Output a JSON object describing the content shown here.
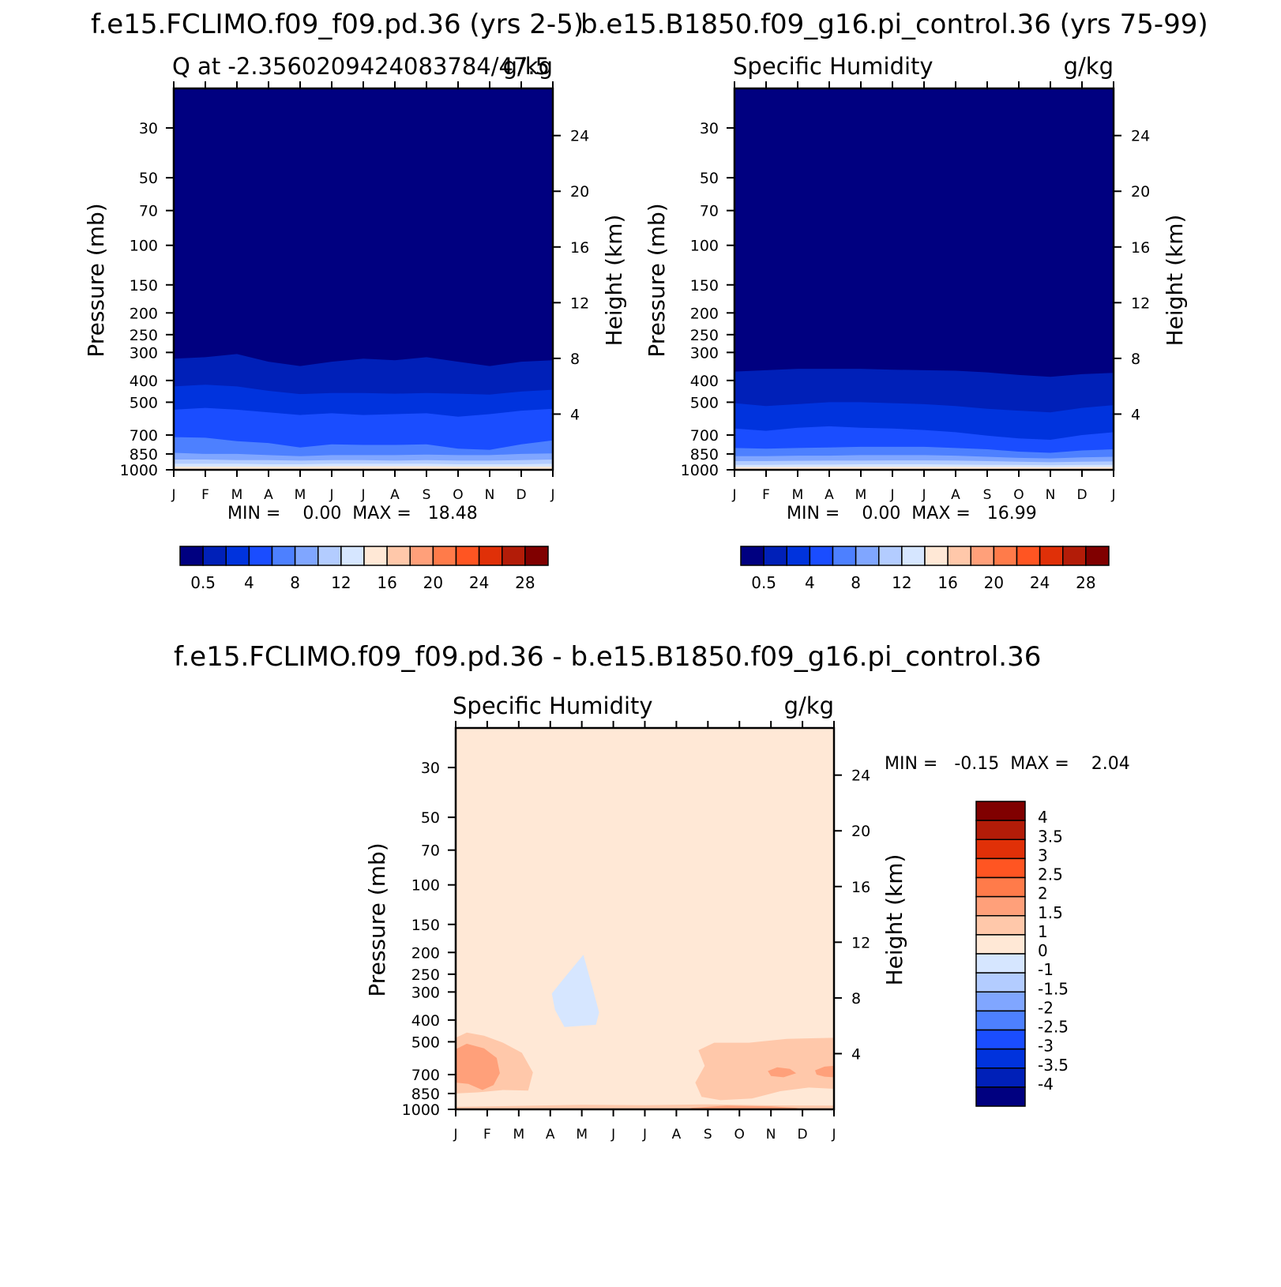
{
  "chart_data": [
    {
      "type": "heatmap",
      "title": "f.e15.FCLIMO.f09_f09.pd.36 (yrs 2-5)",
      "left_label": "Q at -2.3560209424083784/47.5",
      "right_label": "g/kg",
      "xlabel": "",
      "ylabel": "Pressure (mb)",
      "ylabel_right": "Height (km)",
      "x_ticks": [
        "J",
        "F",
        "M",
        "A",
        "M",
        "J",
        "J",
        "A",
        "S",
        "O",
        "N",
        "D",
        "J"
      ],
      "y_ticks": [
        "30",
        "50",
        "70",
        "100",
        "150",
        "200",
        "250",
        "300",
        "400",
        "500",
        "700",
        "850",
        "1000"
      ],
      "y_ticks_right": [
        "4",
        "8",
        "12",
        "16",
        "20",
        "24"
      ],
      "ylim": [
        1000,
        20
      ],
      "yscale": "log",
      "minmax_text": "MIN =    0.00  MAX =   18.48",
      "colorbar_labels": [
        "0.5",
        "4",
        "8",
        "12",
        "16",
        "20",
        "24",
        "28"
      ],
      "colors": [
        "#000080",
        "#0020b8",
        "#0033dd",
        "#1a4dff",
        "#4d80ff",
        "#80a6ff",
        "#b3ccff",
        "#d6e6ff",
        "#ffe8d6",
        "#ffc8aa",
        "#ffa07a",
        "#ff7b4a",
        "#ff5522",
        "#e03008",
        "#b31c08",
        "#800000"
      ],
      "contour_levels": [
        0.5,
        2,
        4,
        6,
        8,
        10,
        12,
        14,
        16,
        18,
        20,
        22,
        24,
        26,
        28
      ],
      "boundaries_mb": [
        [
          320,
          315,
          305,
          330,
          345,
          330,
          320,
          325,
          315,
          330,
          345,
          330,
          325
        ],
        [
          425,
          418,
          425,
          445,
          460,
          455,
          455,
          458,
          455,
          458,
          462,
          448,
          440
        ],
        [
          540,
          530,
          540,
          555,
          570,
          560,
          570,
          565,
          560,
          580,
          565,
          545,
          535
        ],
        [
          715,
          720,
          745,
          760,
          795,
          770,
          775,
          775,
          770,
          805,
          815,
          770,
          740
        ],
        [
          840,
          850,
          850,
          860,
          870,
          860,
          860,
          860,
          855,
          860,
          860,
          850,
          845
        ],
        [
          900,
          900,
          905,
          905,
          910,
          905,
          905,
          910,
          905,
          910,
          910,
          905,
          900
        ],
        [
          940,
          940,
          940,
          945,
          945,
          940,
          940,
          940,
          940,
          945,
          945,
          945,
          940
        ],
        [
          968,
          968,
          968,
          968,
          968,
          965,
          965,
          965,
          965,
          968,
          968,
          968,
          968
        ]
      ]
    },
    {
      "type": "heatmap",
      "title": "b.e15.B1850.f09_g16.pi_control.36 (yrs 75-99)",
      "left_label": "Specific Humidity",
      "right_label": "g/kg",
      "xlabel": "",
      "ylabel": "Pressure (mb)",
      "ylabel_right": "Height (km)",
      "x_ticks": [
        "J",
        "F",
        "M",
        "A",
        "M",
        "J",
        "J",
        "A",
        "S",
        "O",
        "N",
        "D",
        "J"
      ],
      "y_ticks": [
        "30",
        "50",
        "70",
        "100",
        "150",
        "200",
        "250",
        "300",
        "400",
        "500",
        "700",
        "850",
        "1000"
      ],
      "y_ticks_right": [
        "4",
        "8",
        "12",
        "16",
        "20",
        "24"
      ],
      "ylim": [
        1000,
        20
      ],
      "yscale": "log",
      "minmax_text": "MIN =    0.00  MAX =   16.99",
      "colorbar_labels": [
        "0.5",
        "4",
        "8",
        "12",
        "16",
        "20",
        "24",
        "28"
      ],
      "colors": [
        "#000080",
        "#0020b8",
        "#0033dd",
        "#1a4dff",
        "#4d80ff",
        "#80a6ff",
        "#b3ccff",
        "#d6e6ff",
        "#ffe8d6",
        "#ffc8aa",
        "#ffa07a",
        "#ff7b4a",
        "#ff5522",
        "#e03008",
        "#b31c08",
        "#800000"
      ],
      "contour_levels": [
        0.5,
        2,
        4,
        6,
        8,
        10,
        12,
        14,
        16,
        18,
        20,
        22,
        24,
        26,
        28
      ],
      "boundaries_mb": [
        [
          365,
          360,
          355,
          355,
          355,
          358,
          360,
          362,
          368,
          378,
          385,
          375,
          370
        ],
        [
          505,
          520,
          510,
          500,
          500,
          505,
          510,
          520,
          535,
          545,
          555,
          530,
          515
        ],
        [
          655,
          670,
          650,
          640,
          650,
          655,
          665,
          680,
          705,
          725,
          735,
          700,
          680
        ],
        [
          800,
          805,
          800,
          795,
          790,
          790,
          790,
          800,
          810,
          830,
          840,
          820,
          810
        ],
        [
          870,
          870,
          865,
          865,
          860,
          860,
          860,
          865,
          875,
          885,
          890,
          880,
          875
        ],
        [
          915,
          915,
          912,
          910,
          910,
          908,
          908,
          910,
          915,
          920,
          925,
          920,
          918
        ],
        [
          950,
          950,
          948,
          948,
          945,
          945,
          945,
          948,
          950,
          952,
          955,
          952,
          950
        ],
        [
          972,
          972,
          972,
          970,
          970,
          970,
          970,
          970,
          972,
          972,
          975,
          972,
          972
        ]
      ]
    },
    {
      "type": "heatmap",
      "title": "f.e15.FCLIMO.f09_f09.pd.36 - b.e15.B1850.f09_g16.pi_control.36",
      "left_label": "Specific Humidity",
      "right_label": "g/kg",
      "xlabel": "",
      "ylabel": "Pressure (mb)",
      "ylabel_right": "Height (km)",
      "x_ticks": [
        "J",
        "F",
        "M",
        "A",
        "M",
        "J",
        "J",
        "A",
        "S",
        "O",
        "N",
        "D",
        "J"
      ],
      "y_ticks": [
        "30",
        "50",
        "70",
        "100",
        "150",
        "200",
        "250",
        "300",
        "400",
        "500",
        "700",
        "850",
        "1000"
      ],
      "y_ticks_right": [
        "4",
        "8",
        "12",
        "16",
        "20",
        "24"
      ],
      "ylim": [
        1000,
        20
      ],
      "yscale": "log",
      "minmax_text": "MIN =   -0.15  MAX =    2.04",
      "colorbar_labels": [
        "4",
        "3.5",
        "3",
        "2.5",
        "2",
        "1.5",
        "1",
        "0",
        "-1",
        "-1.5",
        "-2",
        "-2.5",
        "-3",
        "-3.5",
        "-4"
      ],
      "colors": [
        "#800000",
        "#b31c08",
        "#e03008",
        "#ff5522",
        "#ff7b4a",
        "#ffa07a",
        "#ffc8aa",
        "#ffe8d6",
        "#d6e6ff",
        "#b3ccff",
        "#80a6ff",
        "#4d80ff",
        "#1a4dff",
        "#0033dd",
        "#0020b8",
        "#000080"
      ],
      "background_color": "#ffe8d6",
      "regions": [
        {
          "level": "-1 to 0",
          "color": "#d6e6ff",
          "points": [
            [
              3.05,
              305
            ],
            [
              3.35,
              270
            ],
            [
              4.05,
              205
            ],
            [
              4.35,
              290
            ],
            [
              4.55,
              370
            ],
            [
              4.45,
              420
            ],
            [
              3.45,
              430
            ],
            [
              3.15,
              360
            ]
          ]
        },
        {
          "level": "0.5 to 1",
          "color": "#ffc8aa",
          "points": [
            [
              0,
              480
            ],
            [
              0.35,
              455
            ],
            [
              0.9,
              470
            ],
            [
              1.5,
              505
            ],
            [
              2.1,
              560
            ],
            [
              2.45,
              685
            ],
            [
              2.3,
              825
            ],
            [
              1.5,
              820
            ],
            [
              0.7,
              840
            ],
            [
              0,
              850
            ]
          ]
        },
        {
          "level": "1 to 1.5",
          "color": "#ffa07a",
          "points": [
            [
              0,
              540
            ],
            [
              0.35,
              510
            ],
            [
              0.9,
              535
            ],
            [
              1.3,
              590
            ],
            [
              1.4,
              690
            ],
            [
              1.2,
              780
            ],
            [
              0.85,
              820
            ],
            [
              0.4,
              770
            ],
            [
              0,
              760
            ]
          ]
        },
        {
          "level": "0.5 to 1",
          "color": "#ffc8aa",
          "points": [
            [
              7.7,
              545
            ],
            [
              8.2,
              505
            ],
            [
              9.3,
              505
            ],
            [
              10.5,
              485
            ],
            [
              12,
              480
            ],
            [
              12,
              810
            ],
            [
              11.2,
              800
            ],
            [
              10.3,
              830
            ],
            [
              9.4,
              895
            ],
            [
              8.4,
              910
            ],
            [
              7.8,
              880
            ],
            [
              7.6,
              760
            ],
            [
              7.9,
              640
            ]
          ]
        },
        {
          "level": "1 to 1.5",
          "color": "#ffa07a",
          "points": [
            [
              9.9,
              675
            ],
            [
              10.2,
              650
            ],
            [
              10.6,
              660
            ],
            [
              10.8,
              690
            ],
            [
              10.4,
              720
            ],
            [
              10.0,
              710
            ]
          ]
        },
        {
          "level": "1 to 1.5",
          "color": "#ffa07a",
          "points": [
            [
              11.4,
              670
            ],
            [
              11.7,
              645
            ],
            [
              12,
              640
            ],
            [
              12,
              720
            ],
            [
              11.7,
              715
            ],
            [
              11.45,
              700
            ]
          ]
        },
        {
          "level": "0.5 to 1",
          "color": "#ffc8aa",
          "points": [
            [
              0,
              975
            ],
            [
              2,
              965
            ],
            [
              4,
              955
            ],
            [
              6,
              958
            ],
            [
              8,
              950
            ],
            [
              10,
              960
            ],
            [
              12,
              962
            ],
            [
              12,
              1000
            ],
            [
              0,
              1000
            ]
          ]
        },
        {
          "level": "1 to 1.5",
          "color": "#ffa07a",
          "points": [
            [
              7.5,
              985
            ],
            [
              8.6,
              962
            ],
            [
              10,
              970
            ],
            [
              10.8,
              985
            ],
            [
              11,
              1000
            ],
            [
              7.3,
              1000
            ]
          ]
        }
      ]
    }
  ]
}
